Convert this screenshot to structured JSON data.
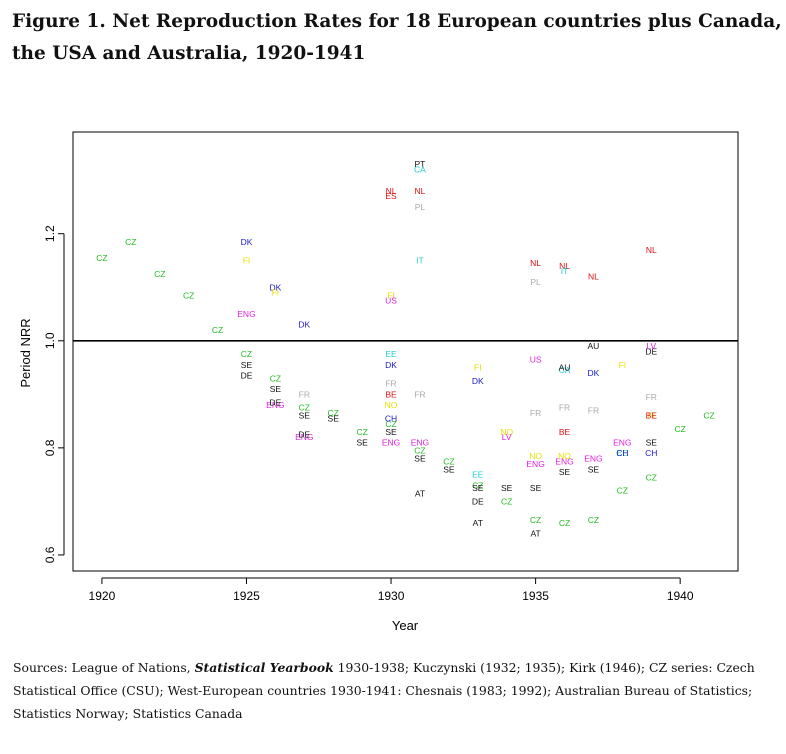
{
  "title": "Figure 1. Net Reproduction Rates for 18 European countries plus Canada, the USA and Australia, 1920-1941",
  "colors": {
    "CZ": "#22bb22",
    "DK": "#1a1acc",
    "FI": "#e8e000",
    "ENG": "#dd22dd",
    "SE": "#111111",
    "DE": "#111111",
    "FR": "#aaaaaa",
    "PL": "#aaaaaa",
    "NL": "#dd1111",
    "ES": "#dd1111",
    "BE": "#dd1111",
    "PT": "#111111",
    "CA": "#22cccc",
    "IT": "#22cccc",
    "EE": "#22cccc",
    "US": "#dd22dd",
    "LV": "#dd22dd",
    "NO": "#e8e000",
    "CH": "#1a1acc",
    "AT": "#111111",
    "AU": "#111111",
    "reference_line": "#000000",
    "axis": "#000000"
  },
  "chart_data": {
    "type": "scatter",
    "title": "",
    "xlabel": "Year",
    "ylabel": "Period NRR",
    "xlim": [
      1919,
      1942
    ],
    "ylim": [
      0.57,
      1.39
    ],
    "xticks": [
      1920,
      1925,
      1930,
      1935,
      1940
    ],
    "yticks": [
      0.6,
      0.8,
      1.0,
      1.2
    ],
    "reference_line_y": 1.0,
    "grid": false,
    "points": [
      {
        "label": "CZ",
        "x": 1920,
        "y": 1.155
      },
      {
        "label": "CZ",
        "x": 1921,
        "y": 1.185
      },
      {
        "label": "CZ",
        "x": 1922,
        "y": 1.125
      },
      {
        "label": "CZ",
        "x": 1923,
        "y": 1.085
      },
      {
        "label": "CZ",
        "x": 1924,
        "y": 1.02
      },
      {
        "label": "CZ",
        "x": 1925,
        "y": 0.975
      },
      {
        "label": "CZ",
        "x": 1926,
        "y": 0.93
      },
      {
        "label": "CZ",
        "x": 1927,
        "y": 0.875
      },
      {
        "label": "CZ",
        "x": 1928,
        "y": 0.865
      },
      {
        "label": "CZ",
        "x": 1929,
        "y": 0.83
      },
      {
        "label": "CZ",
        "x": 1930,
        "y": 0.845
      },
      {
        "label": "CZ",
        "x": 1931,
        "y": 0.795
      },
      {
        "label": "CZ",
        "x": 1932,
        "y": 0.775
      },
      {
        "label": "CZ",
        "x": 1933,
        "y": 0.73
      },
      {
        "label": "CZ",
        "x": 1934,
        "y": 0.7
      },
      {
        "label": "CZ",
        "x": 1935,
        "y": 0.665
      },
      {
        "label": "CZ",
        "x": 1936,
        "y": 0.66
      },
      {
        "label": "CZ",
        "x": 1937,
        "y": 0.665
      },
      {
        "label": "CZ",
        "x": 1938,
        "y": 0.72
      },
      {
        "label": "CZ",
        "x": 1939,
        "y": 0.745
      },
      {
        "label": "CZ",
        "x": 1940,
        "y": 0.835
      },
      {
        "label": "CZ",
        "x": 1941,
        "y": 0.86
      },
      {
        "label": "DK",
        "x": 1925,
        "y": 1.185
      },
      {
        "label": "DK",
        "x": 1926,
        "y": 1.1
      },
      {
        "label": "DK",
        "x": 1927,
        "y": 1.03
      },
      {
        "label": "DK",
        "x": 1930,
        "y": 0.955
      },
      {
        "label": "DK",
        "x": 1933,
        "y": 0.925
      },
      {
        "label": "DK",
        "x": 1937,
        "y": 0.94
      },
      {
        "label": "FI",
        "x": 1925,
        "y": 1.15
      },
      {
        "label": "FI",
        "x": 1926,
        "y": 1.09
      },
      {
        "label": "FI",
        "x": 1930,
        "y": 1.085
      },
      {
        "label": "FI",
        "x": 1933,
        "y": 0.95
      },
      {
        "label": "FI",
        "x": 1938,
        "y": 0.955
      },
      {
        "label": "FI",
        "x": 1939,
        "y": 0.86
      },
      {
        "label": "ENG",
        "x": 1925,
        "y": 1.05
      },
      {
        "label": "ENG",
        "x": 1926,
        "y": 0.88
      },
      {
        "label": "ENG",
        "x": 1927,
        "y": 0.82
      },
      {
        "label": "ENG",
        "x": 1930,
        "y": 0.81
      },
      {
        "label": "ENG",
        "x": 1931,
        "y": 0.81
      },
      {
        "label": "ENG",
        "x": 1935,
        "y": 0.77
      },
      {
        "label": "ENG",
        "x": 1936,
        "y": 0.775
      },
      {
        "label": "ENG",
        "x": 1937,
        "y": 0.78
      },
      {
        "label": "ENG",
        "x": 1938,
        "y": 0.81
      },
      {
        "label": "SE",
        "x": 1925,
        "y": 0.955
      },
      {
        "label": "SE",
        "x": 1926,
        "y": 0.91
      },
      {
        "label": "SE",
        "x": 1927,
        "y": 0.86
      },
      {
        "label": "SE",
        "x": 1928,
        "y": 0.855
      },
      {
        "label": "SE",
        "x": 1929,
        "y": 0.81
      },
      {
        "label": "SE",
        "x": 1930,
        "y": 0.83
      },
      {
        "label": "SE",
        "x": 1931,
        "y": 0.78
      },
      {
        "label": "SE",
        "x": 1932,
        "y": 0.76
      },
      {
        "label": "SE",
        "x": 1933,
        "y": 0.725
      },
      {
        "label": "SE",
        "x": 1934,
        "y": 0.725
      },
      {
        "label": "SE",
        "x": 1935,
        "y": 0.725
      },
      {
        "label": "SE",
        "x": 1936,
        "y": 0.755
      },
      {
        "label": "SE",
        "x": 1937,
        "y": 0.76
      },
      {
        "label": "SE",
        "x": 1939,
        "y": 0.81
      },
      {
        "label": "DE",
        "x": 1925,
        "y": 0.935
      },
      {
        "label": "DE",
        "x": 1926,
        "y": 0.885
      },
      {
        "label": "DE",
        "x": 1927,
        "y": 0.825
      },
      {
        "label": "DE",
        "x": 1933,
        "y": 0.7
      },
      {
        "label": "DE",
        "x": 1939,
        "y": 0.98
      },
      {
        "label": "FR",
        "x": 1927,
        "y": 0.9
      },
      {
        "label": "FR",
        "x": 1930,
        "y": 0.92
      },
      {
        "label": "FR",
        "x": 1931,
        "y": 0.9
      },
      {
        "label": "FR",
        "x": 1935,
        "y": 0.865
      },
      {
        "label": "FR",
        "x": 1936,
        "y": 0.875
      },
      {
        "label": "FR",
        "x": 1937,
        "y": 0.87
      },
      {
        "label": "FR",
        "x": 1939,
        "y": 0.895
      },
      {
        "label": "NL",
        "x": 1930,
        "y": 1.28
      },
      {
        "label": "NL",
        "x": 1931,
        "y": 1.28
      },
      {
        "label": "NL",
        "x": 1935,
        "y": 1.145
      },
      {
        "label": "NL",
        "x": 1936,
        "y": 1.14
      },
      {
        "label": "NL",
        "x": 1937,
        "y": 1.12
      },
      {
        "label": "NL",
        "x": 1939,
        "y": 1.17
      },
      {
        "label": "ES",
        "x": 1930,
        "y": 1.27
      },
      {
        "label": "PT",
        "x": 1931,
        "y": 1.33
      },
      {
        "label": "CA",
        "x": 1931,
        "y": 1.32
      },
      {
        "label": "CA",
        "x": 1936,
        "y": 0.945
      },
      {
        "label": "PL",
        "x": 1931,
        "y": 1.25
      },
      {
        "label": "PL",
        "x": 1935,
        "y": 1.11
      },
      {
        "label": "IT",
        "x": 1931,
        "y": 1.15
      },
      {
        "label": "IT",
        "x": 1936,
        "y": 1.13
      },
      {
        "label": "US",
        "x": 1930,
        "y": 1.075
      },
      {
        "label": "US",
        "x": 1935,
        "y": 0.965
      },
      {
        "label": "EE",
        "x": 1930,
        "y": 0.975
      },
      {
        "label": "EE",
        "x": 1933,
        "y": 0.75
      },
      {
        "label": "EE",
        "x": 1938,
        "y": 0.79
      },
      {
        "label": "BE",
        "x": 1930,
        "y": 0.9
      },
      {
        "label": "BE",
        "x": 1936,
        "y": 0.83
      },
      {
        "label": "BE",
        "x": 1939,
        "y": 0.86
      },
      {
        "label": "NO",
        "x": 1930,
        "y": 0.88
      },
      {
        "label": "NO",
        "x": 1934,
        "y": 0.83
      },
      {
        "label": "NO",
        "x": 1935,
        "y": 0.785
      },
      {
        "label": "NO",
        "x": 1936,
        "y": 0.785
      },
      {
        "label": "CH",
        "x": 1930,
        "y": 0.855
      },
      {
        "label": "CH",
        "x": 1938,
        "y": 0.79
      },
      {
        "label": "CH",
        "x": 1939,
        "y": 0.79
      },
      {
        "label": "LV",
        "x": 1934,
        "y": 0.82
      },
      {
        "label": "LV",
        "x": 1939,
        "y": 0.99
      },
      {
        "label": "AT",
        "x": 1931,
        "y": 0.715
      },
      {
        "label": "AT",
        "x": 1933,
        "y": 0.66
      },
      {
        "label": "AT",
        "x": 1935,
        "y": 0.64
      },
      {
        "label": "AU",
        "x": 1936,
        "y": 0.95
      },
      {
        "label": "AU",
        "x": 1937,
        "y": 0.99
      }
    ]
  },
  "sources": {
    "prefix": "Sources: League of Nations, ",
    "yearbook": "Statistical Yearbook",
    "suffix": " 1930-1938; Kuczynski (1932; 1935); Kirk (1946); CZ series: Czech Statistical Office (CSU); West-European countries 1930-1941: Chesnais (1983; 1992); Australian Bureau of Statistics; Statistics Norway; Statistics Canada"
  }
}
